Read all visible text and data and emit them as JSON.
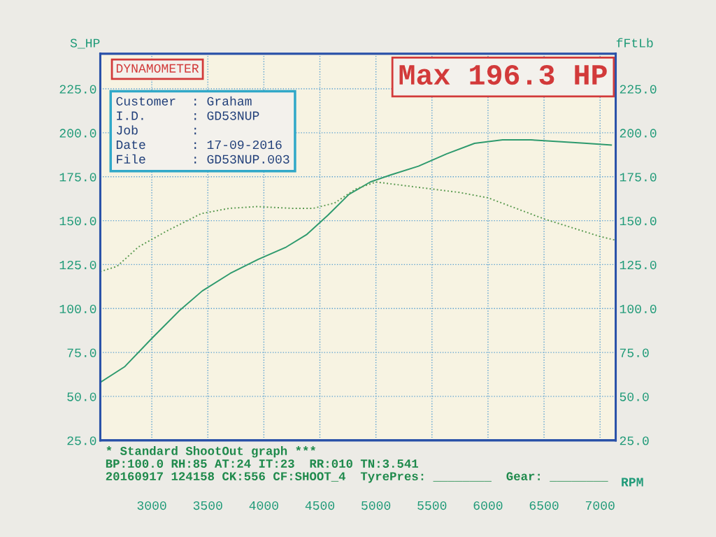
{
  "chart_data": {
    "type": "line",
    "title": "DYNAMOMETER",
    "xlabel": "RPM",
    "ylabel": "S_HP",
    "y2label": "fFtLb",
    "xlim": [
      2540,
      7140
    ],
    "xticks": [
      3000,
      3500,
      4000,
      4500,
      5000,
      5500,
      6000,
      6500,
      7000
    ],
    "ylim": [
      25,
      245
    ],
    "yticks": [
      {
        "value": 25,
        "label": "25.0"
      },
      {
        "value": 50,
        "label": "50.0"
      },
      {
        "value": 75,
        "label": "75.0"
      },
      {
        "value": 100,
        "label": "100.0"
      },
      {
        "value": 125,
        "label": "125.0"
      },
      {
        "value": 150,
        "label": "150.0"
      },
      {
        "value": 175,
        "label": "175.0"
      },
      {
        "value": 200,
        "label": "200.0"
      },
      {
        "value": 225,
        "label": "225.0"
      }
    ],
    "y2lim": [
      25,
      245
    ],
    "y2ticks": [
      {
        "value": 25,
        "label": "25.0"
      },
      {
        "value": 50,
        "label": "50.0"
      },
      {
        "value": 75,
        "label": "75.0"
      },
      {
        "value": 100,
        "label": "100.0"
      },
      {
        "value": 125,
        "label": "125.0"
      },
      {
        "value": 150,
        "label": "150.0"
      },
      {
        "value": 175,
        "label": "175.0"
      },
      {
        "value": 200,
        "label": "200.0"
      },
      {
        "value": 225,
        "label": "225.0"
      }
    ],
    "grid": true,
    "marker": "none",
    "series": [
      {
        "color": "#2e9a6e",
        "line_style": "solid",
        "x": [
          2540,
          2760,
          3000,
          3250,
          3450,
          3700,
          3950,
          4200,
          4380,
          4570,
          4760,
          4950,
          5130,
          5380,
          5630,
          5880,
          6130,
          6380,
          6630,
          6880,
          7100
        ],
        "values": [
          58,
          67,
          83,
          99,
          110,
          120,
          128,
          135,
          142,
          153,
          165,
          172,
          176,
          181,
          188,
          194,
          196,
          196,
          195,
          194,
          193
        ]
      },
      {
        "color": "#5a9a50",
        "line_style": "dotted",
        "axis": "y2",
        "x": [
          2540,
          2690,
          2880,
          3130,
          3440,
          3690,
          3940,
          4250,
          4440,
          4630,
          4820,
          5000,
          5250,
          5500,
          5750,
          6000,
          6250,
          6500,
          6750,
          7000,
          7130
        ],
        "values": [
          121,
          124,
          135,
          144,
          154,
          157,
          158,
          157,
          157,
          160,
          168,
          172,
          170,
          168,
          166,
          163,
          157,
          151,
          146,
          141,
          139
        ]
      }
    ],
    "annotations": [
      "Max 196.3 HP",
      "Customer  : Graham\nI.D.      : GD53NUP\nJob       :\nDate      : 17-09-2016\nFile      : GD53NUP.003",
      "* Standard ShootOut graph ***\nBP:100.0 RH:85 AT:24 IT:23  RR:010 TN:3.541\n20160917 124158 CK:556 CF:SHOOT_4  TyrePres: ________  Gear: ________"
    ]
  }
}
